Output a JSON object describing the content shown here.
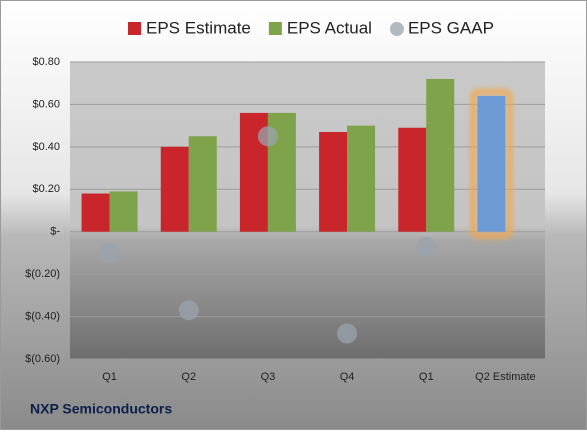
{
  "chart_data": {
    "type": "bar",
    "title": "NXP Semiconductors",
    "categories": [
      "Q1",
      "Q2",
      "Q3",
      "Q4",
      "Q1",
      "Q2 Estimate"
    ],
    "series": [
      {
        "name": "EPS Estimate",
        "color": "#c8262b",
        "values": [
          0.18,
          0.4,
          0.56,
          0.47,
          0.49,
          0.64
        ],
        "point_colors": [
          "#c8262b",
          "#c8262b",
          "#c8262b",
          "#c8262b",
          "#c8262b",
          "#6d9bd6"
        ]
      },
      {
        "name": "EPS Actual",
        "color": "#7fa34a",
        "values": [
          0.19,
          0.45,
          0.56,
          0.5,
          0.72,
          null
        ]
      },
      {
        "name": "EPS GAAP",
        "color": "#9aa3ad",
        "values": [
          -0.1,
          -0.37,
          0.45,
          -0.48,
          -0.07,
          null
        ],
        "marker": "circle"
      }
    ],
    "ylim": [
      -0.6,
      0.8
    ],
    "yticks": [
      {
        "value": -0.6,
        "label": "$(0.60)"
      },
      {
        "value": -0.4,
        "label": "$(0.40)"
      },
      {
        "value": -0.2,
        "label": "$(0.20)"
      },
      {
        "value": 0,
        "label": "$-"
      },
      {
        "value": 0.2,
        "label": "$0.20"
      },
      {
        "value": 0.4,
        "label": "$0.40"
      },
      {
        "value": 0.6,
        "label": "$0.60"
      },
      {
        "value": 0.8,
        "label": "$0.80"
      }
    ],
    "grid": true
  }
}
